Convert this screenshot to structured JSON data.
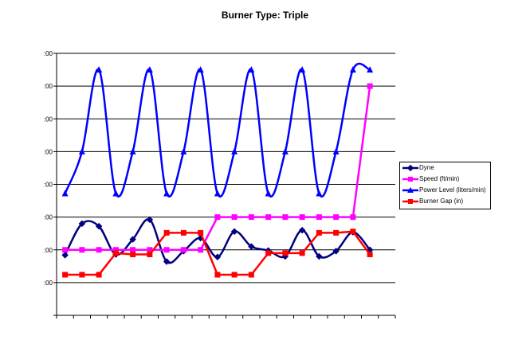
{
  "chart_data": {
    "type": "line",
    "title": "Burner Type: Triple",
    "xlabel": "",
    "ylabel": "",
    "x": [
      1,
      2,
      3,
      4,
      5,
      6,
      7,
      8,
      9,
      10,
      11,
      12,
      13,
      14,
      15,
      16,
      17,
      18,
      19,
      20
    ],
    "ylim": [
      0,
      400
    ],
    "y_ticks": [
      0,
      50,
      100,
      150,
      200,
      250,
      300,
      350,
      400
    ],
    "y_tick_labels": [
      "",
      ":00",
      ":00",
      ":00",
      ":00",
      ":00",
      ":00",
      ":00",
      ":00"
    ],
    "grid": true,
    "legend_position": "right",
    "series": [
      {
        "name": "Dyne",
        "color": "#000080",
        "marker": "diamond",
        "values": [
          92,
          140,
          136,
          93,
          116,
          146,
          82,
          98,
          118,
          89,
          128,
          105,
          99,
          90,
          130,
          90,
          98,
          127,
          100,
          null
        ]
      },
      {
        "name": "Speed (ft/min)",
        "color": "#ff00ff",
        "marker": "square",
        "values": [
          100,
          100,
          100,
          100,
          100,
          100,
          100,
          100,
          100,
          150,
          150,
          150,
          150,
          150,
          150,
          150,
          150,
          150,
          350,
          null
        ]
      },
      {
        "name": "Power Level (liters/min)",
        "color": "#0000ff",
        "marker": "triangle",
        "values": [
          186,
          250,
          375,
          186,
          250,
          375,
          186,
          250,
          375,
          186,
          250,
          375,
          186,
          250,
          375,
          186,
          250,
          375,
          375,
          null
        ]
      },
      {
        "name": "Burner Gap (in)",
        "color": "#ff0000",
        "marker": "square",
        "values": [
          62,
          62,
          62,
          95,
          93,
          93,
          126,
          126,
          126,
          62,
          62,
          62,
          95,
          95,
          95,
          126,
          126,
          128,
          93,
          null
        ]
      }
    ]
  }
}
